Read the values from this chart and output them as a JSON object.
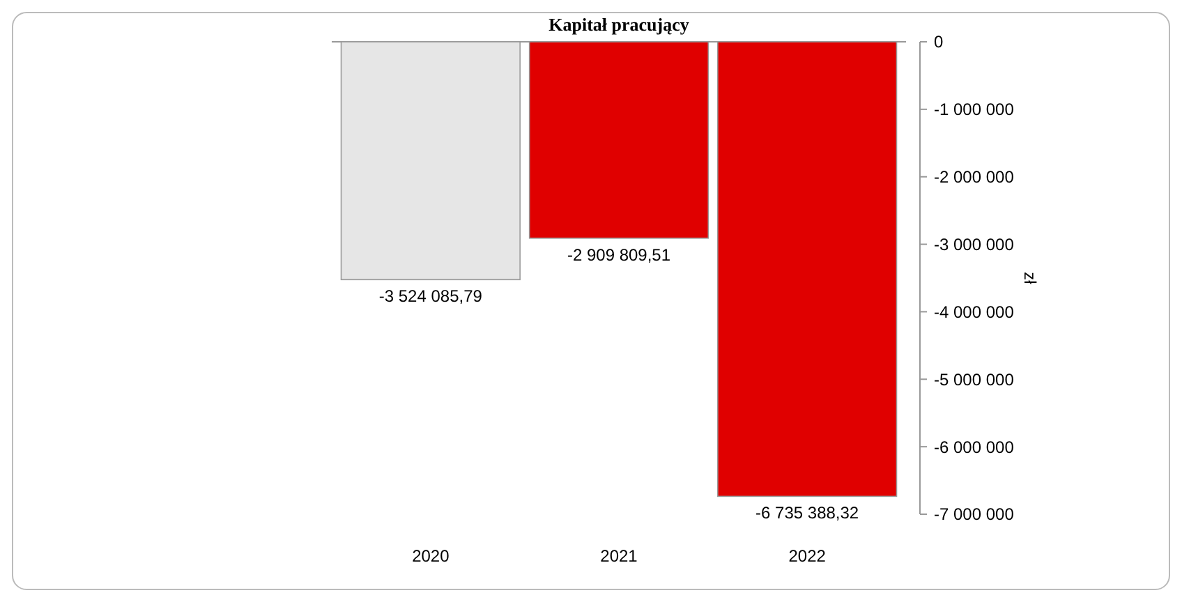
{
  "chart_data": {
    "type": "bar",
    "title": "Kapitał pracujący",
    "ylabel": "zł",
    "categories": [
      "2020",
      "2021",
      "2022"
    ],
    "values": [
      -3524085.79,
      -2909809.51,
      -6735388.32
    ],
    "colors": [
      "#e6e6e6",
      "#e00000",
      "#e00000"
    ],
    "value_labels": [
      "-3 524 085,79",
      "-2 909 809,51",
      "-6 735 388,32"
    ],
    "ylim": [
      -7000000,
      0
    ],
    "yticks": [
      0,
      {
        "value": -1000000,
        "label": "-1 000 000"
      },
      {
        "value": -2000000,
        "label": "-2 000 000"
      },
      {
        "value": -3000000,
        "label": "-3 000 000"
      },
      {
        "value": -4000000,
        "label": "-4 000 000"
      },
      {
        "value": -5000000,
        "label": "-5 000 000"
      },
      {
        "value": -6000000,
        "label": "-6 000 000"
      },
      {
        "value": -7000000,
        "label": "-7 000 000"
      }
    ],
    "grid": false
  }
}
